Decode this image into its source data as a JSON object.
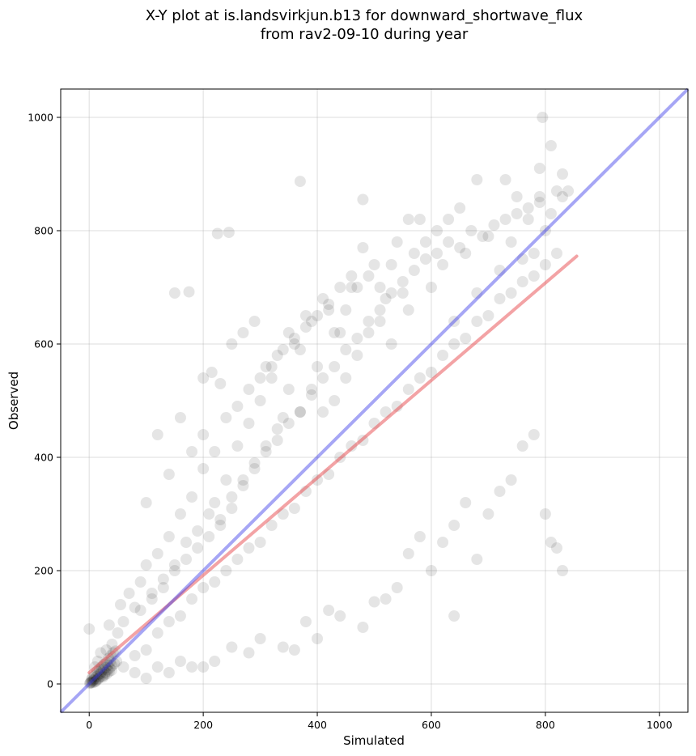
{
  "chart_data": {
    "type": "scatter",
    "title_line1": "X-Y plot at is.landsvirkjun.b13 for downward_shortwave_flux",
    "title_line2": "from rav2-09-10 during year",
    "xlabel": "Simulated",
    "ylabel": "Observed",
    "xlim": [
      -50,
      1050
    ],
    "ylim": [
      -50,
      1050
    ],
    "xticks": [
      0,
      200,
      400,
      600,
      800,
      1000
    ],
    "yticks": [
      0,
      200,
      400,
      600,
      800,
      1000
    ],
    "grid": true,
    "point_color": "#000000",
    "point_alpha": 0.1,
    "series": [
      {
        "points": [
          [
            0,
            97
          ],
          [
            5,
            5
          ],
          [
            10,
            30
          ],
          [
            15,
            40
          ],
          [
            20,
            55
          ],
          [
            30,
            60
          ],
          [
            35,
            104
          ],
          [
            40,
            70
          ],
          [
            50,
            90
          ],
          [
            55,
            140
          ],
          [
            60,
            110
          ],
          [
            70,
            160
          ],
          [
            80,
            135
          ],
          [
            90,
            180
          ],
          [
            100,
            210
          ],
          [
            110,
            160
          ],
          [
            120,
            230
          ],
          [
            130,
            185
          ],
          [
            140,
            260
          ],
          [
            150,
            210
          ],
          [
            160,
            300
          ],
          [
            170,
            250
          ],
          [
            180,
            330
          ],
          [
            190,
            270
          ],
          [
            200,
            380
          ],
          [
            210,
            300
          ],
          [
            220,
            320
          ],
          [
            230,
            280
          ],
          [
            240,
            360
          ],
          [
            250,
            310
          ],
          [
            260,
            420
          ],
          [
            270,
            350
          ],
          [
            280,
            460
          ],
          [
            290,
            380
          ],
          [
            300,
            500
          ],
          [
            310,
            420
          ],
          [
            320,
            540
          ],
          [
            330,
            450
          ],
          [
            340,
            470
          ],
          [
            350,
            520
          ],
          [
            360,
            600
          ],
          [
            370,
            480
          ],
          [
            380,
            650
          ],
          [
            390,
            520
          ],
          [
            400,
            560
          ],
          [
            410,
            480
          ],
          [
            420,
            660
          ],
          [
            430,
            500
          ],
          [
            440,
            620
          ],
          [
            450,
            540
          ],
          [
            460,
            700
          ],
          [
            470,
            580
          ],
          [
            480,
            770
          ],
          [
            490,
            620
          ],
          [
            500,
            740
          ],
          [
            510,
            640
          ],
          [
            520,
            680
          ],
          [
            530,
            600
          ],
          [
            540,
            780
          ],
          [
            560,
            660
          ],
          [
            580,
            820
          ],
          [
            600,
            700
          ],
          [
            620,
            740
          ],
          [
            640,
            640
          ],
          [
            660,
            760
          ],
          [
            680,
            690
          ],
          [
            700,
            790
          ],
          [
            720,
            730
          ],
          [
            740,
            780
          ],
          [
            760,
            750
          ],
          [
            770,
            820
          ],
          [
            780,
            760
          ],
          [
            790,
            850
          ],
          [
            800,
            800
          ],
          [
            810,
            830
          ],
          [
            820,
            870
          ],
          [
            830,
            860
          ],
          [
            60,
            30
          ],
          [
            80,
            50
          ],
          [
            100,
            60
          ],
          [
            120,
            90
          ],
          [
            140,
            110
          ],
          [
            160,
            120
          ],
          [
            180,
            150
          ],
          [
            200,
            170
          ],
          [
            220,
            180
          ],
          [
            240,
            200
          ],
          [
            260,
            220
          ],
          [
            280,
            240
          ],
          [
            300,
            250
          ],
          [
            320,
            280
          ],
          [
            340,
            300
          ],
          [
            360,
            310
          ],
          [
            380,
            340
          ],
          [
            400,
            360
          ],
          [
            420,
            370
          ],
          [
            440,
            400
          ],
          [
            460,
            420
          ],
          [
            480,
            430
          ],
          [
            500,
            460
          ],
          [
            520,
            480
          ],
          [
            540,
            490
          ],
          [
            560,
            520
          ],
          [
            580,
            540
          ],
          [
            600,
            550
          ],
          [
            620,
            580
          ],
          [
            640,
            600
          ],
          [
            660,
            610
          ],
          [
            680,
            640
          ],
          [
            700,
            650
          ],
          [
            720,
            680
          ],
          [
            740,
            690
          ],
          [
            760,
            710
          ],
          [
            780,
            720
          ],
          [
            800,
            740
          ],
          [
            820,
            760
          ],
          [
            100,
            320
          ],
          [
            150,
            690
          ],
          [
            175,
            692
          ],
          [
            225,
            795
          ],
          [
            245,
            797
          ],
          [
            370,
            887
          ],
          [
            480,
            855
          ],
          [
            560,
            820
          ],
          [
            795,
            1000
          ],
          [
            810,
            950
          ],
          [
            680,
            890
          ],
          [
            730,
            890
          ],
          [
            750,
            860
          ],
          [
            790,
            910
          ],
          [
            830,
            900
          ],
          [
            840,
            870
          ],
          [
            560,
            230
          ],
          [
            580,
            260
          ],
          [
            600,
            200
          ],
          [
            620,
            250
          ],
          [
            640,
            280
          ],
          [
            660,
            320
          ],
          [
            680,
            220
          ],
          [
            700,
            300
          ],
          [
            720,
            340
          ],
          [
            740,
            360
          ],
          [
            760,
            420
          ],
          [
            780,
            440
          ],
          [
            800,
            300
          ],
          [
            810,
            250
          ],
          [
            820,
            240
          ],
          [
            830,
            200
          ],
          [
            640,
            120
          ],
          [
            480,
            100
          ],
          [
            500,
            145
          ],
          [
            520,
            150
          ],
          [
            540,
            170
          ],
          [
            420,
            130
          ],
          [
            440,
            120
          ],
          [
            380,
            110
          ],
          [
            400,
            80
          ],
          [
            340,
            65
          ],
          [
            360,
            60
          ],
          [
            300,
            80
          ],
          [
            280,
            55
          ],
          [
            250,
            65
          ],
          [
            220,
            40
          ],
          [
            200,
            30
          ],
          [
            180,
            30
          ],
          [
            160,
            40
          ],
          [
            140,
            20
          ],
          [
            120,
            30
          ],
          [
            100,
            10
          ],
          [
            80,
            20
          ],
          [
            2,
            2
          ],
          [
            4,
            8
          ],
          [
            6,
            12
          ],
          [
            8,
            3
          ],
          [
            10,
            15
          ],
          [
            12,
            6
          ],
          [
            14,
            22
          ],
          [
            16,
            10
          ],
          [
            18,
            25
          ],
          [
            20,
            18
          ],
          [
            22,
            30
          ],
          [
            24,
            12
          ],
          [
            26,
            35
          ],
          [
            28,
            20
          ],
          [
            30,
            38
          ],
          [
            32,
            25
          ],
          [
            34,
            45
          ],
          [
            36,
            28
          ],
          [
            38,
            50
          ],
          [
            40,
            32
          ],
          [
            42,
            55
          ],
          [
            44,
            36
          ],
          [
            46,
            58
          ],
          [
            48,
            40
          ],
          [
            1,
            1
          ],
          [
            3,
            3
          ],
          [
            5,
            2
          ],
          [
            7,
            6
          ],
          [
            9,
            9
          ],
          [
            11,
            4
          ],
          [
            13,
            13
          ],
          [
            15,
            8
          ],
          [
            17,
            17
          ],
          [
            19,
            12
          ],
          [
            21,
            21
          ],
          [
            23,
            14
          ],
          [
            25,
            26
          ],
          [
            27,
            16
          ],
          [
            29,
            29
          ],
          [
            31,
            18
          ],
          [
            33,
            33
          ],
          [
            35,
            22
          ],
          [
            37,
            40
          ],
          [
            39,
            24
          ],
          [
            90,
            130
          ],
          [
            110,
            150
          ],
          [
            130,
            170
          ],
          [
            150,
            200
          ],
          [
            170,
            220
          ],
          [
            190,
            240
          ],
          [
            210,
            260
          ],
          [
            230,
            290
          ],
          [
            250,
            330
          ],
          [
            270,
            360
          ],
          [
            290,
            390
          ],
          [
            310,
            410
          ],
          [
            330,
            430
          ],
          [
            350,
            460
          ],
          [
            370,
            480
          ],
          [
            390,
            510
          ],
          [
            410,
            540
          ],
          [
            430,
            560
          ],
          [
            450,
            590
          ],
          [
            470,
            610
          ],
          [
            490,
            640
          ],
          [
            510,
            660
          ],
          [
            530,
            690
          ],
          [
            550,
            710
          ],
          [
            570,
            730
          ],
          [
            590,
            750
          ],
          [
            610,
            760
          ],
          [
            630,
            780
          ],
          [
            650,
            770
          ],
          [
            670,
            800
          ],
          [
            690,
            790
          ],
          [
            710,
            810
          ],
          [
            730,
            820
          ],
          [
            750,
            830
          ],
          [
            770,
            840
          ],
          [
            790,
            860
          ],
          [
            200,
            540
          ],
          [
            215,
            550
          ],
          [
            230,
            530
          ],
          [
            250,
            600
          ],
          [
            270,
            620
          ],
          [
            290,
            640
          ],
          [
            310,
            560
          ],
          [
            330,
            580
          ],
          [
            350,
            620
          ],
          [
            370,
            590
          ],
          [
            390,
            640
          ],
          [
            410,
            680
          ],
          [
            430,
            620
          ],
          [
            450,
            660
          ],
          [
            470,
            700
          ],
          [
            490,
            720
          ],
          [
            510,
            700
          ],
          [
            530,
            740
          ],
          [
            550,
            690
          ],
          [
            570,
            760
          ],
          [
            590,
            780
          ],
          [
            610,
            800
          ],
          [
            630,
            820
          ],
          [
            650,
            840
          ],
          [
            120,
            440
          ],
          [
            140,
            370
          ],
          [
            160,
            470
          ],
          [
            180,
            410
          ],
          [
            200,
            440
          ],
          [
            220,
            410
          ],
          [
            240,
            470
          ],
          [
            260,
            490
          ],
          [
            280,
            520
          ],
          [
            300,
            540
          ],
          [
            320,
            560
          ],
          [
            340,
            590
          ],
          [
            360,
            610
          ],
          [
            380,
            630
          ],
          [
            400,
            650
          ],
          [
            420,
            670
          ],
          [
            440,
            700
          ],
          [
            460,
            720
          ]
        ]
      }
    ],
    "regression_line": {
      "color": "#e8474c",
      "x": [
        0,
        855
      ],
      "y": [
        20,
        755
      ]
    },
    "one_to_one_line": {
      "color": "#3a3ae8",
      "x": [
        -50,
        1050
      ],
      "y": [
        -50,
        1050
      ]
    }
  }
}
